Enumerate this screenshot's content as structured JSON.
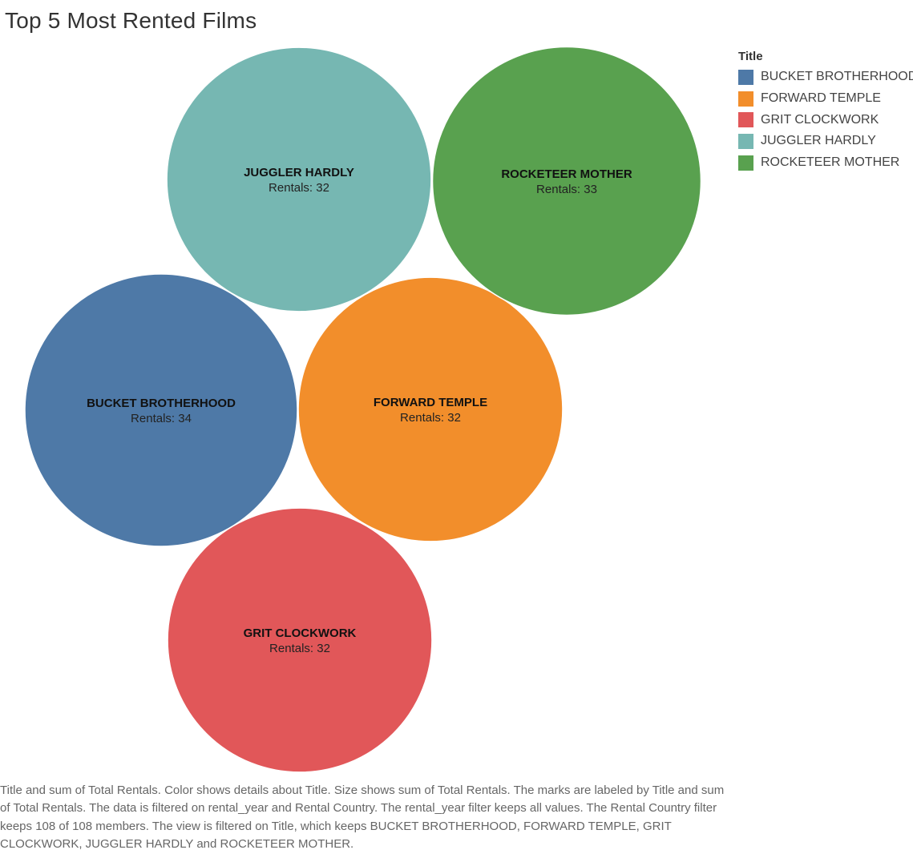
{
  "chart_data": {
    "type": "packed-bubble",
    "title": "Top 5 Most Rented Films",
    "size_measure": "sum of Total Rentals",
    "value_prefix": "Rentals: ",
    "legend": {
      "title": "Title",
      "placement": "top-right",
      "items": [
        {
          "label": "BUCKET BROTHERHOOD",
          "color": "#4e79a7"
        },
        {
          "label": "FORWARD TEMPLE",
          "color": "#f28e2b"
        },
        {
          "label": "GRIT CLOCKWORK",
          "color": "#e15759"
        },
        {
          "label": "JUGGLER HARDLY",
          "color": "#76b7b2"
        },
        {
          "label": "ROCKETEER MOTHER",
          "color": "#59a14f"
        }
      ]
    },
    "series": [
      {
        "name": "BUCKET BROTHERHOOD",
        "value": 34,
        "color": "#4e79a7"
      },
      {
        "name": "FORWARD TEMPLE",
        "value": 32,
        "color": "#f28e2b"
      },
      {
        "name": "GRIT CLOCKWORK",
        "value": 32,
        "color": "#e15759"
      },
      {
        "name": "JUGGLER HARDLY",
        "value": 32,
        "color": "#76b7b2"
      },
      {
        "name": "ROCKETEER MOTHER",
        "value": 33,
        "color": "#59a14f"
      }
    ]
  },
  "caption": "Title and sum of Total Rentals.  Color shows details about Title.  Size shows sum of Total Rentals.  The marks are labeled by Title and sum of Total Rentals. The data is filtered on rental_year and Rental Country. The rental_year filter keeps all values. The Rental Country filter keeps 108 of 108 members. The view is filtered on Title, which keeps BUCKET BROTHERHOOD, FORWARD TEMPLE, GRIT CLOCKWORK, JUGGLER HARDLY and ROCKETEER MOTHER."
}
